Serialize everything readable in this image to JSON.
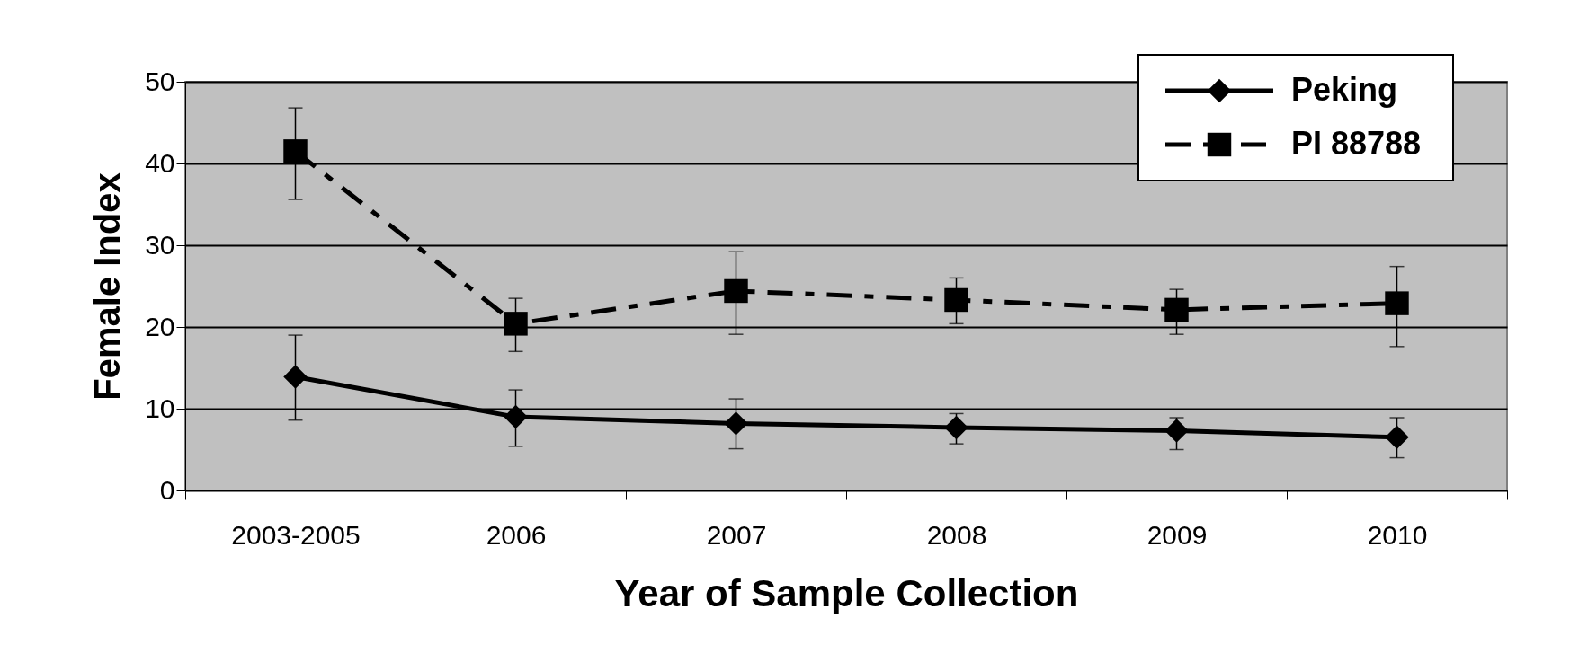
{
  "chart_data": {
    "type": "line",
    "xlabel": "Year of Sample Collection",
    "ylabel": "Female Index",
    "categories": [
      "2003-2005",
      "2006",
      "2007",
      "2008",
      "2009",
      "2010"
    ],
    "ylim": [
      0,
      50
    ],
    "yticks": [
      0,
      10,
      20,
      30,
      40,
      50
    ],
    "grid": "y",
    "legend": "top right",
    "series": [
      {
        "name": "Peking",
        "color": "#000000",
        "marker": "diamond",
        "line_style": "solid",
        "values": [
          13.9,
          9.0,
          8.2,
          7.7,
          7.3,
          6.5
        ],
        "errors": [
          [
            8.6,
            19.0
          ],
          [
            5.4,
            12.3
          ],
          [
            5.1,
            11.2
          ],
          [
            5.7,
            9.4
          ],
          [
            5.0,
            8.9
          ],
          [
            4.0,
            8.9
          ]
        ]
      },
      {
        "name": "PI 88788",
        "color": "#000000",
        "marker": "square",
        "line_style": "dashed",
        "values": [
          41.5,
          20.4,
          24.4,
          23.3,
          22.1,
          22.9
        ],
        "errors": [
          [
            35.6,
            46.8
          ],
          [
            17.0,
            23.5
          ],
          [
            19.1,
            29.2
          ],
          [
            20.4,
            26.0
          ],
          [
            19.1,
            24.6
          ],
          [
            17.6,
            27.4
          ]
        ]
      }
    ]
  }
}
